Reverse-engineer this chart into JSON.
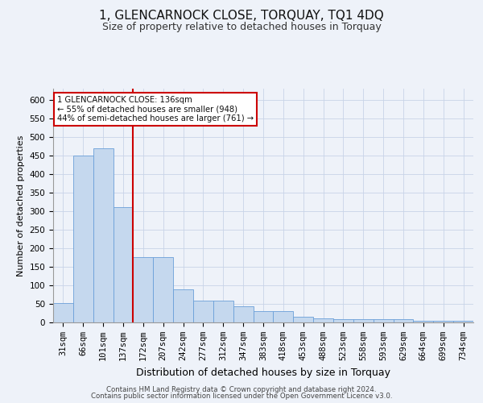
{
  "title": "1, GLENCARNOCK CLOSE, TORQUAY, TQ1 4DQ",
  "subtitle": "Size of property relative to detached houses in Torquay",
  "xlabel": "Distribution of detached houses by size in Torquay",
  "ylabel": "Number of detached properties",
  "categories": [
    "31sqm",
    "66sqm",
    "101sqm",
    "137sqm",
    "172sqm",
    "207sqm",
    "242sqm",
    "277sqm",
    "312sqm",
    "347sqm",
    "383sqm",
    "418sqm",
    "453sqm",
    "488sqm",
    "523sqm",
    "558sqm",
    "593sqm",
    "629sqm",
    "664sqm",
    "699sqm",
    "734sqm"
  ],
  "values": [
    53,
    450,
    470,
    310,
    175,
    175,
    88,
    58,
    58,
    43,
    30,
    30,
    15,
    10,
    8,
    8,
    8,
    8,
    4,
    4,
    4
  ],
  "bar_color": "#c5d8ee",
  "bar_edge_color": "#6a9fd8",
  "red_line_index": 3,
  "annotation_text": "1 GLENCARNOCK CLOSE: 136sqm\n← 55% of detached houses are smaller (948)\n44% of semi-detached houses are larger (761) →",
  "annotation_box_color": "#ffffff",
  "annotation_box_edge": "#cc0000",
  "footer_line1": "Contains HM Land Registry data © Crown copyright and database right 2024.",
  "footer_line2": "Contains public sector information licensed under the Open Government Licence v3.0.",
  "ylim": [
    0,
    630
  ],
  "yticks": [
    0,
    50,
    100,
    150,
    200,
    250,
    300,
    350,
    400,
    450,
    500,
    550,
    600
  ],
  "title_fontsize": 11,
  "subtitle_fontsize": 9,
  "axis_label_fontsize": 8,
  "tick_fontsize": 7.5,
  "bg_color": "#eef2f9",
  "grid_color": "#c8d4e8"
}
